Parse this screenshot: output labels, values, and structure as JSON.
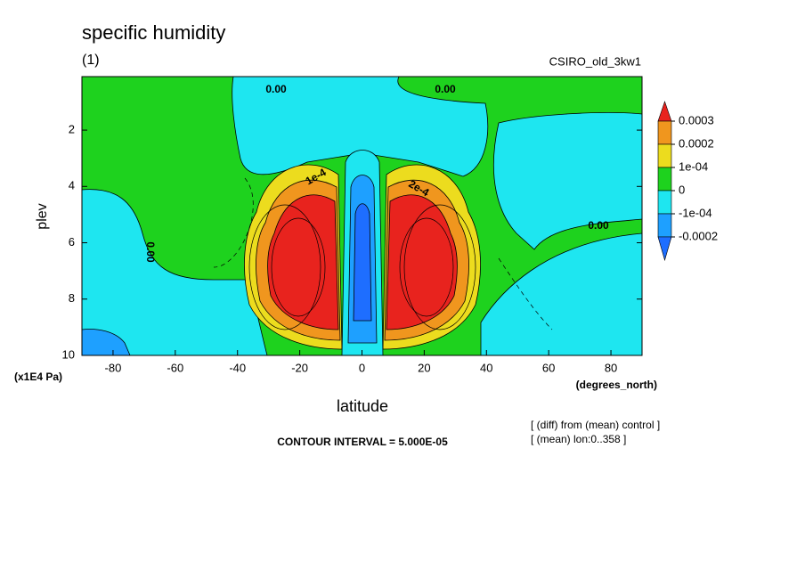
{
  "chart_data": {
    "type": "contour",
    "title": "specific humidity",
    "subtitle": "(1)",
    "source_label": "CSIRO_old_3kw1",
    "x_label": "latitude",
    "x_units": "(degrees_north)",
    "y_label": "plev",
    "y_units": "(x1E4 Pa)",
    "xlim": [
      -90,
      90
    ],
    "xticks": [
      -80,
      -60,
      -40,
      -20,
      0,
      20,
      40,
      60,
      80
    ],
    "ylim": [
      10,
      0.1
    ],
    "yticks": [
      2,
      4,
      6,
      8,
      10
    ],
    "levels": [
      0.0003,
      0.0002,
      {
        "value": 0.0001,
        "label": "1e-04"
      },
      0,
      {
        "value": -0.0001,
        "label": "-1e-04"
      },
      -0.0002
    ],
    "colors": [
      "#e8231e",
      "#f0961e",
      "#ecdc1e",
      "#1ed21e",
      "#1ee6f0",
      "#1ea0ff",
      "#1e6eff"
    ],
    "contour_labels": [
      "0.00",
      "0.00",
      "0.00",
      "0.00",
      "2e-4",
      "1e-4"
    ],
    "notes": [
      "CONTOUR INTERVAL = 5.000E-05",
      "[ (diff) from (mean) control ]",
      "[ (mean) lon:0..358 ]"
    ]
  }
}
